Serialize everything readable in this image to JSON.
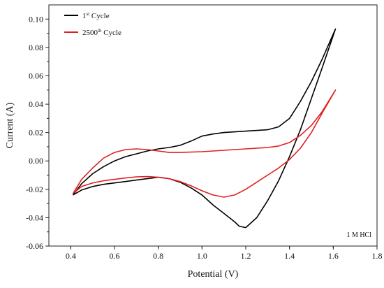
{
  "chart_data": {
    "type": "line",
    "xlabel": "Potential (V)",
    "ylabel": "Current (A)",
    "xlim": [
      0.3,
      1.8
    ],
    "ylim": [
      -0.06,
      0.11
    ],
    "x_ticks": [
      "0.4",
      "0.6",
      "0.8",
      "1.0",
      "1.2",
      "1.4",
      "1.6",
      "1.8"
    ],
    "y_ticks": [
      "-0.06",
      "-0.04",
      "-0.02",
      "0.00",
      "0.02",
      "0.04",
      "0.06",
      "0.08",
      "0.10"
    ],
    "annotation": "1 M HCl",
    "legend_position": "top-left",
    "series": [
      {
        "name": "1st Cycle",
        "name_base": "1",
        "name_sup": "st",
        "name_rest": " Cycle",
        "color": "#000000",
        "points": [
          [
            0.41,
            -0.024
          ],
          [
            0.45,
            -0.016
          ],
          [
            0.5,
            -0.009
          ],
          [
            0.55,
            -0.004
          ],
          [
            0.6,
            0.0
          ],
          [
            0.65,
            0.003
          ],
          [
            0.7,
            0.005
          ],
          [
            0.75,
            0.007
          ],
          [
            0.8,
            0.0085
          ],
          [
            0.85,
            0.0095
          ],
          [
            0.9,
            0.011
          ],
          [
            0.95,
            0.014
          ],
          [
            1.0,
            0.0175
          ],
          [
            1.05,
            0.019
          ],
          [
            1.1,
            0.02
          ],
          [
            1.2,
            0.021
          ],
          [
            1.3,
            0.022
          ],
          [
            1.35,
            0.024
          ],
          [
            1.4,
            0.03
          ],
          [
            1.45,
            0.042
          ],
          [
            1.5,
            0.056
          ],
          [
            1.55,
            0.072
          ],
          [
            1.61,
            0.093
          ],
          [
            1.55,
            0.066
          ],
          [
            1.5,
            0.044
          ],
          [
            1.45,
            0.022
          ],
          [
            1.4,
            0.003
          ],
          [
            1.35,
            -0.014
          ],
          [
            1.3,
            -0.028
          ],
          [
            1.25,
            -0.04
          ],
          [
            1.2,
            -0.047
          ],
          [
            1.17,
            -0.046
          ],
          [
            1.15,
            -0.043
          ],
          [
            1.1,
            -0.037
          ],
          [
            1.05,
            -0.031
          ],
          [
            1.0,
            -0.024
          ],
          [
            0.95,
            -0.019
          ],
          [
            0.9,
            -0.015
          ],
          [
            0.85,
            -0.0125
          ],
          [
            0.8,
            -0.0115
          ],
          [
            0.75,
            -0.0125
          ],
          [
            0.7,
            -0.0135
          ],
          [
            0.65,
            -0.0145
          ],
          [
            0.6,
            -0.0155
          ],
          [
            0.55,
            -0.0165
          ],
          [
            0.5,
            -0.018
          ],
          [
            0.45,
            -0.0205
          ],
          [
            0.41,
            -0.024
          ]
        ]
      },
      {
        "name": "2500th Cycle",
        "name_base": "2500",
        "name_sup": "th",
        "name_rest": " Cycle",
        "color": "#e02020",
        "points": [
          [
            0.41,
            -0.023
          ],
          [
            0.45,
            -0.013
          ],
          [
            0.5,
            -0.005
          ],
          [
            0.55,
            0.002
          ],
          [
            0.6,
            0.006
          ],
          [
            0.65,
            0.008
          ],
          [
            0.7,
            0.0085
          ],
          [
            0.75,
            0.008
          ],
          [
            0.8,
            0.007
          ],
          [
            0.85,
            0.006
          ],
          [
            0.9,
            0.006
          ],
          [
            1.0,
            0.0065
          ],
          [
            1.1,
            0.0075
          ],
          [
            1.2,
            0.0085
          ],
          [
            1.3,
            0.0095
          ],
          [
            1.35,
            0.0105
          ],
          [
            1.4,
            0.013
          ],
          [
            1.45,
            0.018
          ],
          [
            1.5,
            0.025
          ],
          [
            1.55,
            0.035
          ],
          [
            1.61,
            0.05
          ],
          [
            1.55,
            0.034
          ],
          [
            1.5,
            0.02
          ],
          [
            1.45,
            0.009
          ],
          [
            1.4,
            0.001
          ],
          [
            1.35,
            -0.005
          ],
          [
            1.3,
            -0.01
          ],
          [
            1.25,
            -0.015
          ],
          [
            1.2,
            -0.02
          ],
          [
            1.15,
            -0.024
          ],
          [
            1.1,
            -0.0255
          ],
          [
            1.05,
            -0.024
          ],
          [
            1.0,
            -0.021
          ],
          [
            0.95,
            -0.0175
          ],
          [
            0.9,
            -0.0145
          ],
          [
            0.85,
            -0.0125
          ],
          [
            0.8,
            -0.0115
          ],
          [
            0.75,
            -0.011
          ],
          [
            0.7,
            -0.0112
          ],
          [
            0.65,
            -0.012
          ],
          [
            0.6,
            -0.013
          ],
          [
            0.55,
            -0.014
          ],
          [
            0.5,
            -0.0155
          ],
          [
            0.45,
            -0.018
          ],
          [
            0.41,
            -0.023
          ]
        ]
      }
    ]
  }
}
